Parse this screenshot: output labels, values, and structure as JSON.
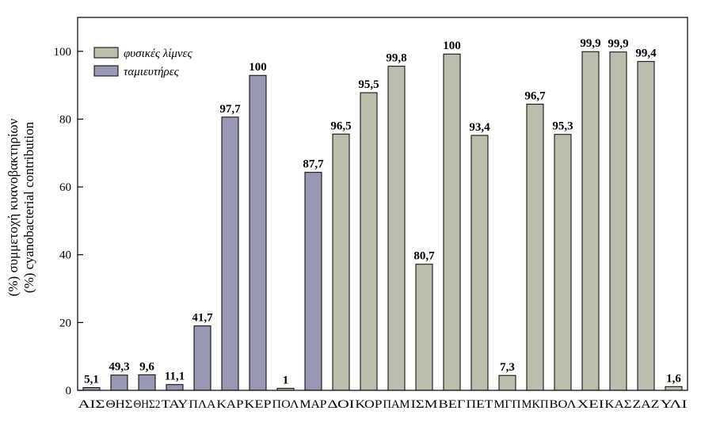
{
  "chart_data": {
    "type": "bar",
    "ylabel_line1": "(%) συμμετοχή κυανοβακτηρίων",
    "ylabel_line2": "(%) cyanobacterial contribution",
    "ylim": [
      0,
      110
    ],
    "yticks": [
      0,
      20,
      40,
      60,
      80,
      100
    ],
    "legend_position": "top-left",
    "legend": [
      {
        "name": "φυσικές λίμνες",
        "color": "#bdbdae"
      },
      {
        "name": "ταμιευτήρες",
        "color": "#9898b2"
      }
    ],
    "categories": [
      "ΑΙΣ",
      "ΘΗΣ1",
      "ΘΗΣ2",
      "ΤΑΥ",
      "ΠΛΑ",
      "ΚΑΡ",
      "ΚΕΡ",
      "ΠΟΛ",
      "ΜΑΡ",
      "ΔΟΙ",
      "ΚΟΡ",
      "ΠΑΜ",
      "ΙΣΜ",
      "ΒΕΓ",
      "ΠΕΤ",
      "ΜΓΠ",
      "ΜΚΠ",
      "ΒΟΛ",
      "ΧΕΙ",
      "ΚΑΣ",
      "ΖΑΖ",
      "ΥΛΙ"
    ],
    "tick_labels": [
      "ΑΙΣ",
      "ΘΗΣ",
      "ΘΗΣ2",
      "ΤΑΥ",
      "ΠΛΑ",
      "ΚΑΡ",
      "ΚΕΡ",
      "ΠΟΛ",
      "ΜΑΡ",
      "ΔΟΙ",
      "ΚΟΡ",
      "ΠΑΜ",
      "ΙΣΜ",
      "ΒΕΓ",
      "ΠΕΤ",
      "ΜΓΠ",
      "ΜΚΠ",
      "ΒΟΛ",
      "ΧΕΙ",
      "ΚΑΣ",
      "ΖΑΖ",
      "ΥΛΙ"
    ],
    "values": [
      0.8,
      4.5,
      4.6,
      1.7,
      19.0,
      80.6,
      92.9,
      0.6,
      64.3,
      75.6,
      87.8,
      95.6,
      37.2,
      99.2,
      75.2,
      4.4,
      84.4,
      75.5,
      99.9,
      99.8,
      97.0,
      1.1
    ],
    "groups": [
      "ταμιευτήρες",
      "ταμιευτήρες",
      "ταμιευτήρες",
      "ταμιευτήρες",
      "ταμιευτήρες",
      "ταμιευτήρες",
      "ταμιευτήρες",
      "φυσικές λίμνες",
      "ταμιευτήρες",
      "φυσικές λίμνες",
      "φυσικές λίμνες",
      "φυσικές λίμνες",
      "φυσικές λίμνες",
      "φυσικές λίμνες",
      "φυσικές λίμνες",
      "φυσικές λίμνες",
      "φυσικές λίμνες",
      "φυσικές λίμνες",
      "φυσικές λίμνες",
      "φυσικές λίμνες",
      "φυσικές λίμνες",
      "φυσικές λίμνες"
    ],
    "data_labels": [
      "5,1",
      "49,3",
      "9,6",
      "11,1",
      "41,7",
      "97,7",
      "100",
      "1",
      "87,7",
      "96,5",
      "95,5",
      "99,8",
      "80,7",
      "100",
      "93,4",
      "7,3",
      "96,7",
      "95,3",
      "99,9",
      "99,9",
      "99,4",
      "1,6"
    ]
  }
}
